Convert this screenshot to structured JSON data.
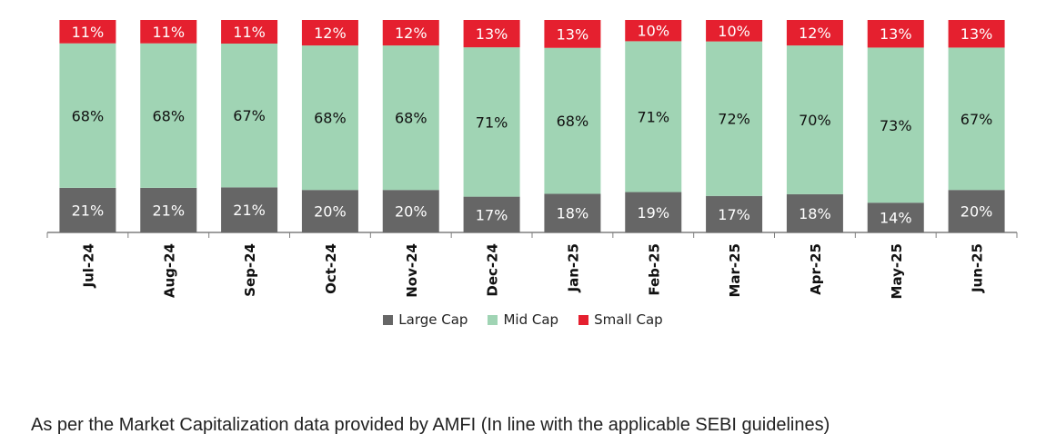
{
  "chart_data": {
    "type": "bar",
    "stacked": true,
    "categories": [
      "Jul-24",
      "Aug-24",
      "Sep-24",
      "Oct-24",
      "Nov-24",
      "Dec-24",
      "Jan-25",
      "Feb-25",
      "Mar-25",
      "Apr-25",
      "May-25",
      "Jun-25"
    ],
    "series": [
      {
        "name": "Large Cap",
        "color": "#666666",
        "values": [
          21,
          21,
          21,
          20,
          20,
          17,
          18,
          19,
          17,
          18,
          14,
          20
        ]
      },
      {
        "name": "Mid Cap",
        "color": "#a0d4b4",
        "values": [
          68,
          68,
          67,
          68,
          68,
          71,
          68,
          71,
          72,
          70,
          73,
          67
        ]
      },
      {
        "name": "Small Cap",
        "color": "#e5202f",
        "values": [
          11,
          11,
          11,
          12,
          12,
          13,
          13,
          10,
          10,
          12,
          13,
          13
        ]
      }
    ],
    "value_suffix": "%",
    "legend_position": "bottom"
  },
  "footnote": "As per the Market Capitalization data provided by AMFI (In line with the applicable SEBI guidelines)"
}
